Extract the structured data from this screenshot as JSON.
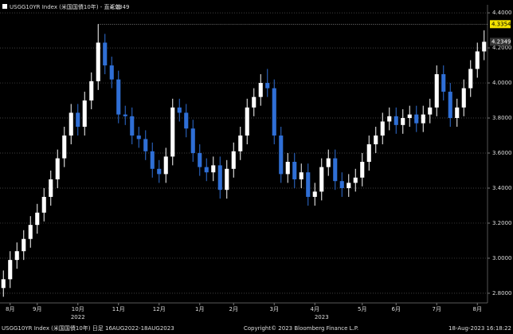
{
  "chart_data": {
    "type": "candlestick",
    "title": "USGG10YR Index (米国国債10年) - 直近値",
    "last_value": 4.2349,
    "high_value": 4.3354,
    "footer_left": "USGG10YR Index (米国国債10年) 日足 16AUG2022-18AUG2023",
    "footer_center": "Copyright© 2023 Bloomberg Finance L.P.",
    "footer_right": "18-Aug-2023 16:18:22",
    "year_labels": [
      "2022",
      "2023"
    ],
    "up_color": "#ffffff",
    "down_color": "#2f6fd6",
    "categories": [
      null,
      "8月",
      null,
      null,
      null,
      "9月",
      null,
      null,
      null,
      null,
      null,
      "10月",
      null,
      null,
      null,
      null,
      null,
      "11月",
      null,
      null,
      null,
      null,
      null,
      "12月",
      null,
      null,
      null,
      null,
      null,
      "1月",
      null,
      null,
      null,
      null,
      "2月",
      null,
      null,
      null,
      null,
      null,
      "3月",
      null,
      null,
      null,
      null,
      null,
      "4月",
      null,
      null,
      null,
      null,
      null,
      null,
      "5月",
      null,
      null,
      null,
      null,
      "6月",
      null,
      null,
      null,
      null,
      null,
      "7月",
      null,
      null,
      null,
      null,
      null,
      "8月",
      null
    ],
    "open": [
      2.83,
      2.88,
      2.99,
      3.04,
      3.11,
      3.19,
      3.26,
      3.35,
      3.45,
      3.57,
      3.7,
      3.83,
      3.75,
      3.9,
      4.01,
      4.23,
      4.1,
      4.02,
      3.82,
      3.81,
      3.7,
      3.68,
      3.61,
      3.51,
      3.48,
      3.58,
      3.86,
      3.83,
      3.74,
      3.6,
      3.52,
      3.49,
      3.53,
      3.39,
      3.51,
      3.61,
      3.7,
      3.86,
      3.92,
      4.0,
      3.97,
      3.7,
      3.48,
      3.55,
      3.45,
      3.49,
      3.35,
      3.38,
      3.52,
      3.57,
      3.44,
      3.4,
      3.43,
      3.46,
      3.55,
      3.65,
      3.7,
      3.78,
      3.81,
      3.76,
      3.8,
      3.82,
      3.77,
      3.82,
      3.86,
      4.05,
      3.95,
      3.8,
      3.86,
      3.97,
      4.08,
      4.18
    ],
    "high": [
      2.93,
      3.04,
      3.09,
      3.16,
      3.24,
      3.31,
      3.4,
      3.5,
      3.62,
      3.75,
      3.88,
      3.88,
      3.95,
      4.06,
      4.3354,
      4.28,
      4.15,
      4.07,
      3.87,
      3.86,
      3.75,
      3.73,
      3.66,
      3.56,
      3.63,
      3.91,
      3.91,
      3.88,
      3.79,
      3.65,
      3.57,
      3.58,
      3.58,
      3.56,
      3.66,
      3.75,
      3.91,
      3.97,
      4.05,
      4.08,
      4.02,
      3.75,
      3.6,
      3.6,
      3.54,
      3.54,
      3.43,
      3.57,
      3.62,
      3.62,
      3.49,
      3.48,
      3.51,
      3.6,
      3.7,
      3.75,
      3.83,
      3.86,
      3.86,
      3.85,
      3.87,
      3.87,
      3.87,
      3.91,
      4.1,
      4.1,
      4.0,
      3.91,
      4.02,
      4.13,
      4.23,
      4.3
    ],
    "low": [
      2.78,
      2.83,
      2.94,
      2.99,
      3.06,
      3.14,
      3.21,
      3.3,
      3.4,
      3.52,
      3.65,
      3.7,
      3.7,
      3.85,
      3.96,
      4.05,
      3.97,
      3.77,
      3.76,
      3.65,
      3.63,
      3.56,
      3.46,
      3.43,
      3.43,
      3.53,
      3.78,
      3.69,
      3.55,
      3.47,
      3.44,
      3.44,
      3.34,
      3.34,
      3.46,
      3.56,
      3.65,
      3.81,
      3.87,
      3.92,
      3.65,
      3.43,
      3.43,
      3.4,
      3.4,
      3.3,
      3.3,
      3.33,
      3.47,
      3.39,
      3.35,
      3.35,
      3.38,
      3.41,
      3.5,
      3.6,
      3.65,
      3.73,
      3.71,
      3.71,
      3.75,
      3.72,
      3.72,
      3.77,
      3.81,
      3.9,
      3.75,
      3.75,
      3.81,
      3.92,
      4.03,
      4.13
    ],
    "close": [
      2.88,
      2.99,
      3.04,
      3.11,
      3.19,
      3.26,
      3.35,
      3.45,
      3.57,
      3.7,
      3.83,
      3.75,
      3.9,
      4.01,
      4.23,
      4.1,
      4.02,
      3.82,
      3.81,
      3.7,
      3.68,
      3.61,
      3.51,
      3.48,
      3.58,
      3.86,
      3.83,
      3.74,
      3.6,
      3.52,
      3.49,
      3.53,
      3.39,
      3.51,
      3.61,
      3.7,
      3.86,
      3.92,
      4.0,
      3.97,
      3.7,
      3.48,
      3.55,
      3.45,
      3.49,
      3.35,
      3.38,
      3.52,
      3.57,
      3.44,
      3.4,
      3.43,
      3.46,
      3.55,
      3.65,
      3.7,
      3.78,
      3.81,
      3.76,
      3.8,
      3.82,
      3.77,
      3.82,
      3.86,
      4.05,
      3.95,
      3.8,
      3.86,
      3.97,
      4.08,
      4.18,
      4.2349
    ],
    "ylim": [
      2.745,
      4.446
    ],
    "yticks": [
      {
        "value": 2.8,
        "label": "2.8000"
      },
      {
        "value": 3.0,
        "label": "3.0000"
      },
      {
        "value": 3.2,
        "label": "3.2000"
      },
      {
        "value": 3.4,
        "label": "3.4000"
      },
      {
        "value": 3.6,
        "label": "3.6000"
      },
      {
        "value": 3.8,
        "label": "3.8000"
      },
      {
        "value": 4.0,
        "label": "4.0000"
      },
      {
        "value": 4.2,
        "label": "4.2000"
      },
      {
        "value": 4.4,
        "label": "4.4000"
      }
    ],
    "grid": true
  }
}
